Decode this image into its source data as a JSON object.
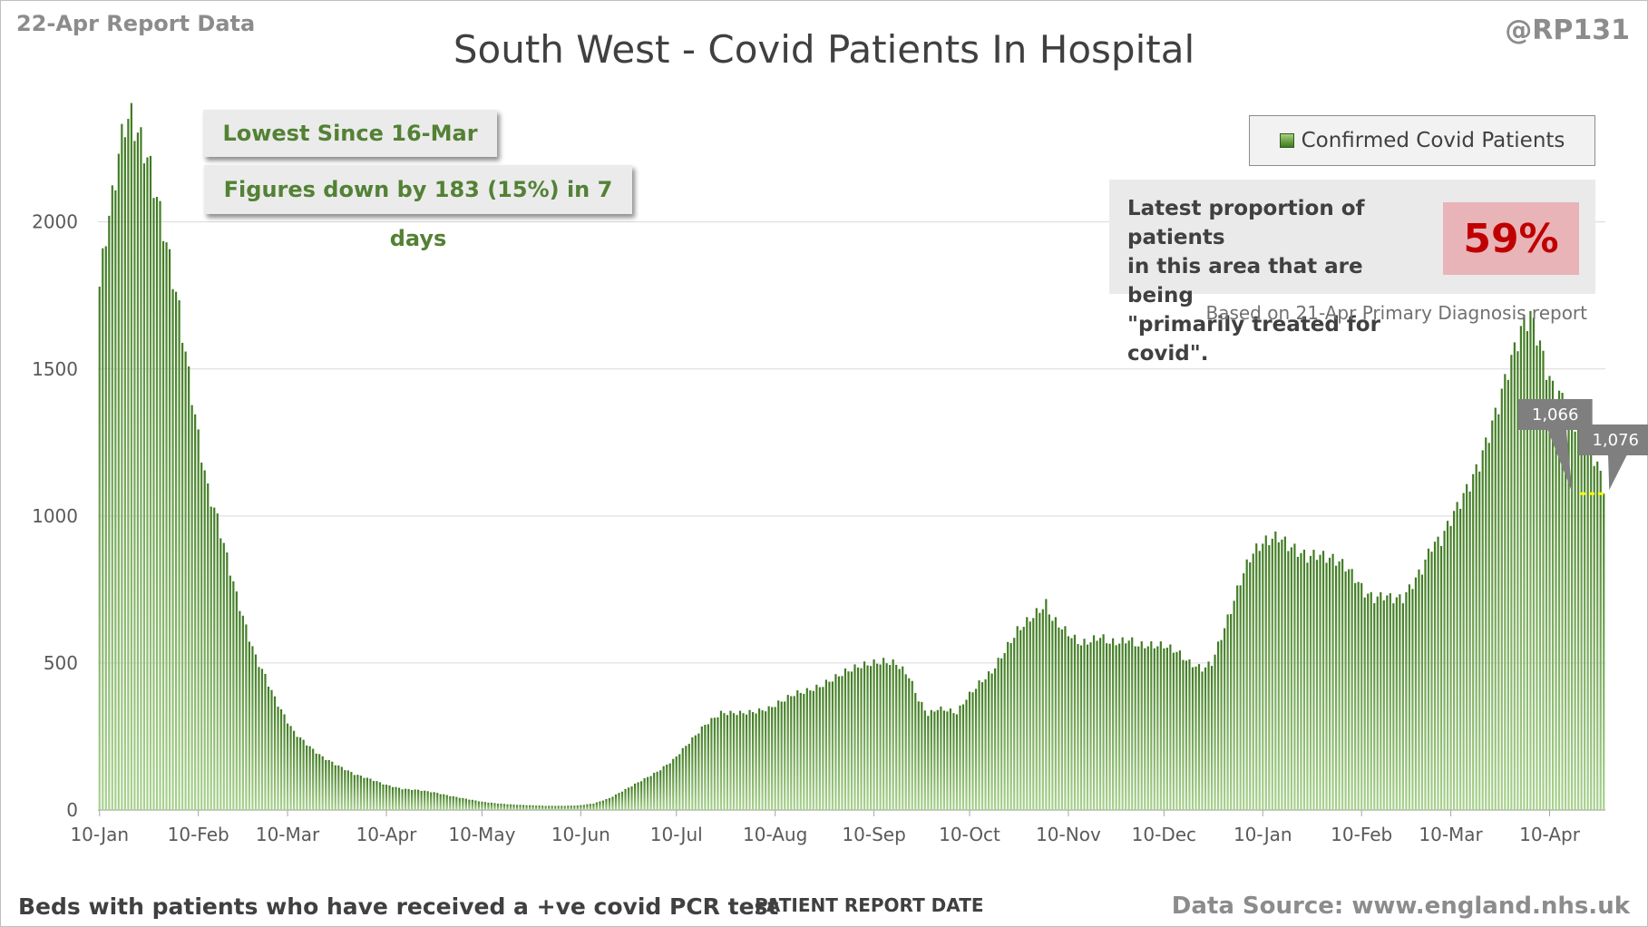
{
  "header": {
    "report_date": "22-Apr Report Data",
    "handle": "@RP131",
    "title": "South West - Covid Patients In Hospital"
  },
  "callouts": {
    "lowest": "Lowest Since 16-Mar",
    "change": "Figures down by 183 (15%) in 7 days"
  },
  "legend": {
    "label": "Confirmed Covid Patients"
  },
  "proportion": {
    "text_line1": "Latest proportion of patients",
    "text_line2": "in this area that are being",
    "text_line3": "\"primarily treated for covid\".",
    "value": "59%",
    "note": "Based on 21-Apr Primary Diagnosis report"
  },
  "footer": {
    "left": "Beds with patients who have received a +ve covid PCR test",
    "axis_title": "PATIENT REPORT DATE",
    "source": "Data Source: www.england.nhs.uk"
  },
  "colors": {
    "bar_light": "#a9d18e",
    "bar_dark": "#3f7a21",
    "grid": "#d9d9d9",
    "reference_line": "#ffff00",
    "label_box": "#7f7f7f"
  },
  "chart_data": {
    "type": "bar",
    "title": "South West - Covid Patients In Hospital",
    "xlabel": "PATIENT REPORT DATE",
    "ylabel": "",
    "ylim": [
      0,
      2400
    ],
    "yticks": [
      0,
      500,
      1000,
      1500,
      2000
    ],
    "grid": true,
    "legend_position": "top-right",
    "x_tick_labels": [
      "10-Jan",
      "10-Feb",
      "10-Mar",
      "10-Apr",
      "10-May",
      "10-Jun",
      "10-Jul",
      "10-Aug",
      "10-Sep",
      "10-Oct",
      "10-Nov",
      "10-Dec",
      "10-Jan",
      "10-Feb",
      "10-Mar",
      "10-Apr"
    ],
    "x_tick_day_index": [
      0,
      31,
      59,
      90,
      120,
      151,
      181,
      212,
      243,
      273,
      304,
      334,
      365,
      396,
      424,
      455
    ],
    "start_date": "2021-01-01",
    "series": [
      {
        "name": "Confirmed Covid Patients",
        "keyframes": [
          [
            0,
            1780
          ],
          [
            2,
            1960
          ],
          [
            4,
            2080
          ],
          [
            6,
            2230
          ],
          [
            8,
            2340
          ],
          [
            10,
            2355
          ],
          [
            12,
            2300
          ],
          [
            14,
            2250
          ],
          [
            16,
            2180
          ],
          [
            18,
            2080
          ],
          [
            20,
            1980
          ],
          [
            22,
            1870
          ],
          [
            25,
            1700
          ],
          [
            28,
            1480
          ],
          [
            31,
            1270
          ],
          [
            34,
            1090
          ],
          [
            37,
            990
          ],
          [
            40,
            860
          ],
          [
            43,
            730
          ],
          [
            46,
            620
          ],
          [
            49,
            520
          ],
          [
            52,
            455
          ],
          [
            55,
            380
          ],
          [
            58,
            320
          ],
          [
            61,
            265
          ],
          [
            64,
            235
          ],
          [
            67,
            205
          ],
          [
            70,
            180
          ],
          [
            75,
            150
          ],
          [
            80,
            122
          ],
          [
            85,
            105
          ],
          [
            90,
            85
          ],
          [
            95,
            72
          ],
          [
            100,
            68
          ],
          [
            105,
            60
          ],
          [
            110,
            48
          ],
          [
            115,
            38
          ],
          [
            120,
            28
          ],
          [
            125,
            22
          ],
          [
            130,
            18
          ],
          [
            135,
            16
          ],
          [
            140,
            14
          ],
          [
            145,
            14
          ],
          [
            150,
            15
          ],
          [
            155,
            22
          ],
          [
            160,
            40
          ],
          [
            165,
            70
          ],
          [
            170,
            100
          ],
          [
            175,
            130
          ],
          [
            180,
            170
          ],
          [
            185,
            230
          ],
          [
            190,
            290
          ],
          [
            195,
            330
          ],
          [
            198,
            330
          ],
          [
            202,
            330
          ],
          [
            206,
            335
          ],
          [
            210,
            345
          ],
          [
            214,
            370
          ],
          [
            218,
            395
          ],
          [
            222,
            405
          ],
          [
            226,
            420
          ],
          [
            230,
            445
          ],
          [
            234,
            470
          ],
          [
            238,
            488
          ],
          [
            242,
            498
          ],
          [
            246,
            505
          ],
          [
            250,
            498
          ],
          [
            254,
            455
          ],
          [
            257,
            375
          ],
          [
            260,
            325
          ],
          [
            263,
            345
          ],
          [
            266,
            340
          ],
          [
            269,
            330
          ],
          [
            272,
            380
          ],
          [
            276,
            430
          ],
          [
            280,
            470
          ],
          [
            284,
            540
          ],
          [
            288,
            610
          ],
          [
            292,
            650
          ],
          [
            295,
            680
          ],
          [
            297,
            700
          ],
          [
            299,
            650
          ],
          [
            302,
            620
          ],
          [
            305,
            590
          ],
          [
            308,
            565
          ],
          [
            311,
            575
          ],
          [
            314,
            590
          ],
          [
            317,
            570
          ],
          [
            320,
            570
          ],
          [
            323,
            580
          ],
          [
            326,
            560
          ],
          [
            330,
            560
          ],
          [
            334,
            560
          ],
          [
            338,
            540
          ],
          [
            342,
            500
          ],
          [
            346,
            480
          ],
          [
            349,
            500
          ],
          [
            352,
            590
          ],
          [
            355,
            680
          ],
          [
            358,
            780
          ],
          [
            361,
            860
          ],
          [
            364,
            900
          ],
          [
            367,
            920
          ],
          [
            370,
            930
          ],
          [
            373,
            900
          ],
          [
            376,
            880
          ],
          [
            379,
            860
          ],
          [
            382,
            870
          ],
          [
            385,
            860
          ],
          [
            388,
            850
          ],
          [
            391,
            830
          ],
          [
            394,
            790
          ],
          [
            397,
            740
          ],
          [
            400,
            720
          ],
          [
            403,
            730
          ],
          [
            406,
            720
          ],
          [
            409,
            720
          ],
          [
            412,
            770
          ],
          [
            415,
            820
          ],
          [
            418,
            900
          ],
          [
            421,
            920
          ],
          [
            424,
            990
          ],
          [
            427,
            1050
          ],
          [
            430,
            1110
          ],
          [
            433,
            1180
          ],
          [
            436,
            1280
          ],
          [
            439,
            1380
          ],
          [
            442,
            1500
          ],
          [
            445,
            1600
          ],
          [
            447,
            1660
          ],
          [
            449,
            1680
          ],
          [
            451,
            1620
          ],
          [
            453,
            1540
          ],
          [
            455,
            1460
          ],
          [
            457,
            1420
          ],
          [
            459,
            1400
          ],
          [
            461,
            1370
          ],
          [
            463,
            1320
          ],
          [
            465,
            1280
          ],
          [
            467,
            1250
          ],
          [
            469,
            1200
          ],
          [
            471,
            1140
          ],
          [
            472,
            1076
          ]
        ]
      }
    ],
    "annotations": [
      {
        "label": "1,066",
        "day_index": 465,
        "value": 1066
      },
      {
        "label": "1,076",
        "day_index": 472,
        "value": 1076
      }
    ],
    "reference_line": {
      "value": 1076,
      "from_day_index": 465,
      "to_day_index": 472
    }
  }
}
